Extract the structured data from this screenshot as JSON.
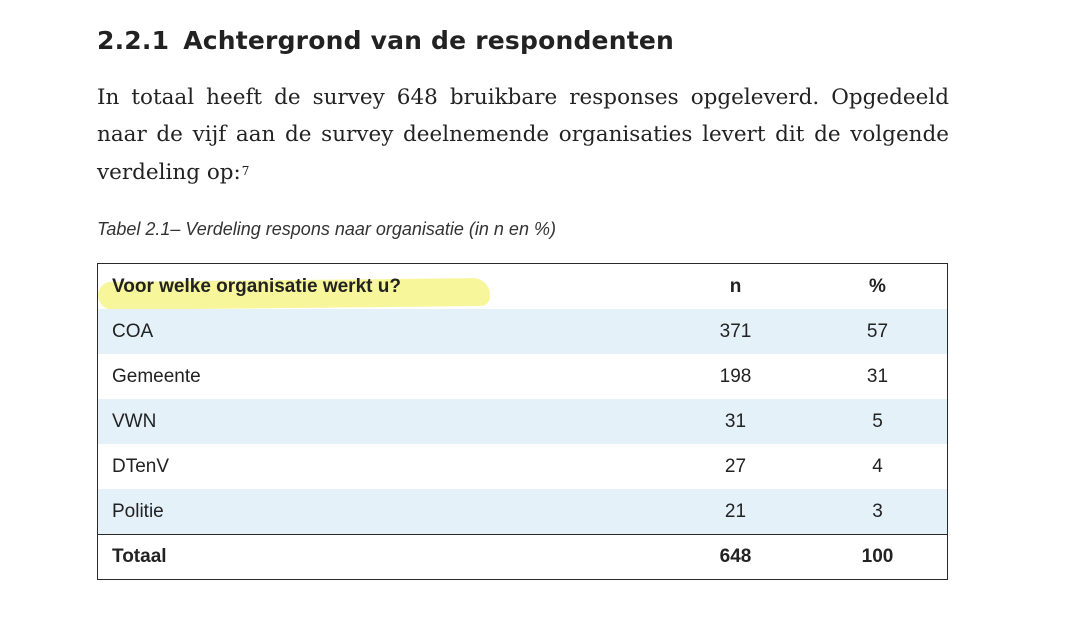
{
  "section": {
    "number": "2.2.1",
    "title": "Achtergrond van de respondenten"
  },
  "paragraph": {
    "text": "In totaal heeft de survey 648 bruikbare responses opgeleverd. Opgedeeld naar de vijf aan de survey deelnemende organisaties levert dit de volgende verdeling op:",
    "footnote_ref": "7"
  },
  "table": {
    "caption": "Tabel 2.1– Verdeling respons naar organisatie (in n en %)",
    "headers": {
      "label": "Voor welke organisatie werkt u?",
      "n": "n",
      "pct": "%"
    },
    "rows": [
      {
        "label": "COA",
        "n": "371",
        "pct": "57"
      },
      {
        "label": "Gemeente",
        "n": "198",
        "pct": "31"
      },
      {
        "label": "VWN",
        "n": "31",
        "pct": "5"
      },
      {
        "label": "DTenV",
        "n": "27",
        "pct": "4"
      },
      {
        "label": "Politie",
        "n": "21",
        "pct": "3"
      }
    ],
    "total": {
      "label": "Totaal",
      "n": "648",
      "pct": "100"
    }
  },
  "colors": {
    "row_shade": "#e4f1f9",
    "highlighter": "#f6f48a"
  }
}
